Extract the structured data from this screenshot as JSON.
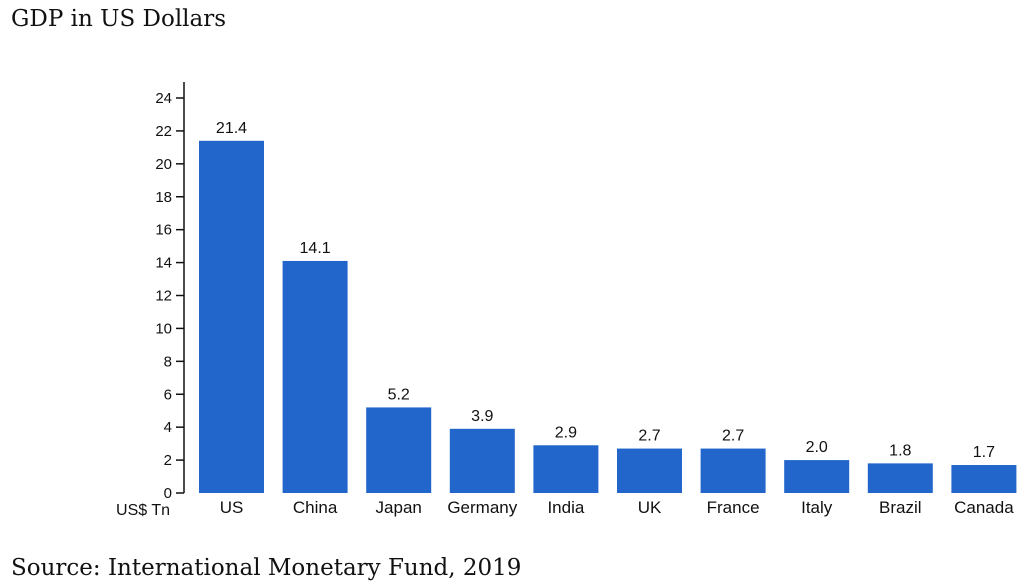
{
  "header": {
    "title": "GDP in US Dollars"
  },
  "footer": {
    "source": "Source: International Monetary Fund, 2019"
  },
  "colors": {
    "bar": "#2266cc",
    "axis": "#111111"
  },
  "chart_data": {
    "type": "bar",
    "title": "GDP in US Dollars",
    "xlabel": "",
    "ylabel": "US$ Tn",
    "categories": [
      "US",
      "China",
      "Japan",
      "Germany",
      "India",
      "UK",
      "France",
      "Italy",
      "Brazil",
      "Canada"
    ],
    "values": [
      21.4,
      14.1,
      5.2,
      3.9,
      2.9,
      2.7,
      2.7,
      2.0,
      1.8,
      1.7
    ],
    "data_labels": [
      "21.4",
      "14.1",
      "5.2",
      "3.9",
      "2.9",
      "2.7",
      "2.7",
      "2.0",
      "1.8",
      "1.7"
    ],
    "yticks": [
      0,
      2,
      4,
      6,
      8,
      10,
      12,
      14,
      16,
      18,
      20,
      22,
      24
    ],
    "ylim": [
      0,
      24
    ],
    "grid": false,
    "legend": "none"
  }
}
